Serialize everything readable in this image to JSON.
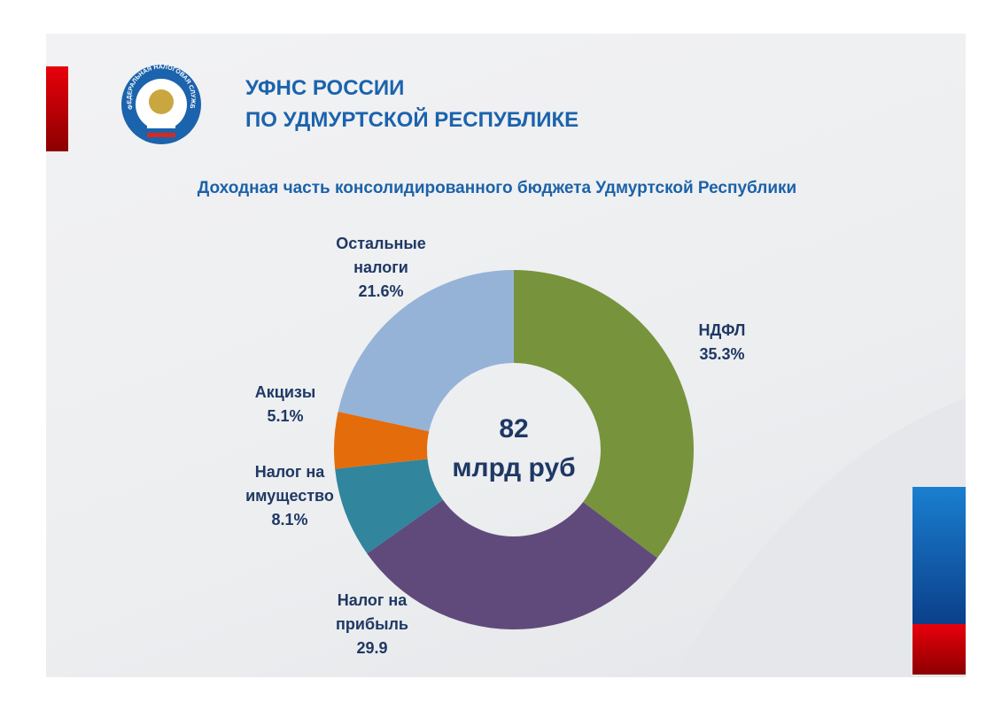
{
  "header": {
    "logo_text": "ФЕДЕРАЛЬНАЯ НАЛОГОВАЯ СЛУЖБА",
    "title_line1": "УФНС РОССИИ",
    "title_line2": "ПО УДМУРТСКОЙ РЕСПУБЛИКЕ"
  },
  "chart_data": {
    "type": "donut",
    "title": "Доходная часть консолидированного бюджета Удмуртской Республики",
    "center_value": "82",
    "center_unit": "млрд руб",
    "categories": [
      "НДФЛ",
      "Налог на прибыль",
      "Налог на имущество",
      "Акцизы",
      "Остальные налоги"
    ],
    "values": [
      35.3,
      29.9,
      8.1,
      5.1,
      21.6
    ],
    "value_labels": [
      "35.3%",
      "29.9",
      "8.1%",
      "5.1%",
      "21.6%"
    ],
    "colors": [
      "#77933c",
      "#604a7b",
      "#31859c",
      "#e46c0a",
      "#95b3d7"
    ]
  }
}
